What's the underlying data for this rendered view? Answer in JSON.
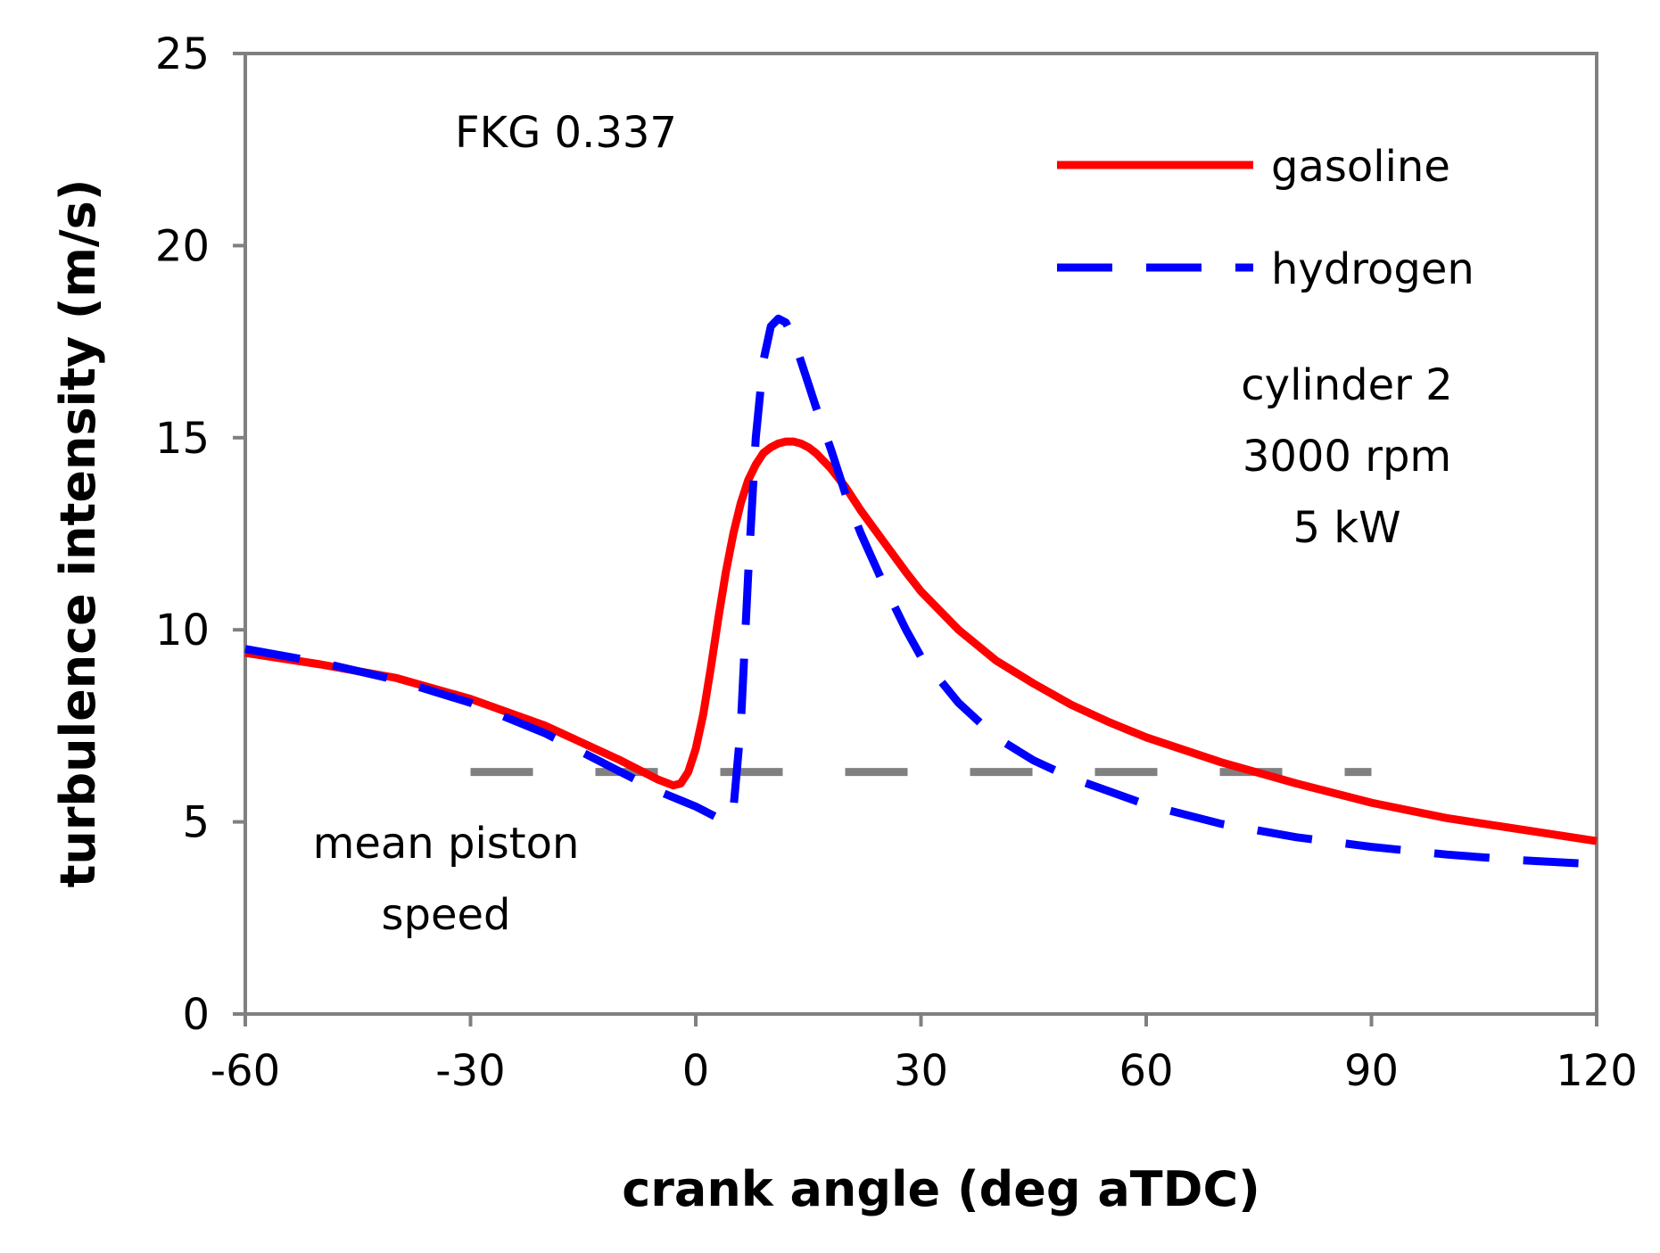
{
  "chart_data": {
    "type": "line",
    "title": "",
    "xlabel": "crank angle (deg aTDC)",
    "ylabel": "turbulence intensity (m/s)",
    "xlim": [
      -60,
      120
    ],
    "ylim": [
      0,
      25
    ],
    "xticks": [
      -60,
      -30,
      0,
      30,
      60,
      90,
      120
    ],
    "yticks": [
      0,
      5,
      10,
      15,
      20,
      25
    ],
    "xtick_labels": [
      "-60",
      "-30",
      "0",
      "30",
      "60",
      "90",
      "120"
    ],
    "ytick_labels": [
      "0",
      "5",
      "10",
      "15",
      "20",
      "25"
    ],
    "grid": false,
    "legend_position": "top-right",
    "series": [
      {
        "name": "gasoline",
        "color": "#ff0000",
        "style": "solid",
        "x": [
          -60,
          -50,
          -40,
          -30,
          -20,
          -10,
          -5,
          -3,
          -2,
          -1,
          0,
          1,
          2,
          3,
          4,
          5,
          6,
          7,
          8,
          9,
          10,
          11,
          12,
          13,
          14,
          15,
          16,
          18,
          20,
          22,
          25,
          28,
          30,
          35,
          40,
          45,
          50,
          55,
          60,
          70,
          80,
          90,
          100,
          110,
          120
        ],
        "y": [
          9.4,
          9.1,
          8.75,
          8.2,
          7.5,
          6.6,
          6.1,
          5.95,
          6.0,
          6.3,
          6.9,
          7.8,
          9.0,
          10.3,
          11.5,
          12.5,
          13.3,
          13.9,
          14.3,
          14.6,
          14.75,
          14.85,
          14.9,
          14.9,
          14.85,
          14.75,
          14.6,
          14.2,
          13.7,
          13.1,
          12.3,
          11.5,
          11.0,
          10.0,
          9.2,
          8.6,
          8.05,
          7.6,
          7.2,
          6.55,
          6.0,
          5.5,
          5.1,
          4.8,
          4.5
        ]
      },
      {
        "name": "hydrogen",
        "color": "#0000ff",
        "style": "dashed",
        "x": [
          -60,
          -50,
          -40,
          -30,
          -20,
          -10,
          -5,
          0,
          2,
          4,
          5,
          6,
          7,
          8,
          9,
          10,
          11,
          12,
          13,
          14,
          15,
          16,
          18,
          20,
          22,
          25,
          28,
          30,
          35,
          40,
          45,
          50,
          55,
          60,
          70,
          80,
          90,
          100,
          110,
          120
        ],
        "y": [
          9.5,
          9.15,
          8.7,
          8.1,
          7.3,
          6.3,
          5.8,
          5.4,
          5.2,
          5.0,
          5.3,
          7.5,
          11.5,
          15.0,
          17.0,
          17.9,
          18.1,
          18.0,
          17.6,
          17.0,
          16.4,
          15.8,
          14.7,
          13.5,
          12.5,
          11.2,
          10.0,
          9.3,
          8.1,
          7.2,
          6.6,
          6.15,
          5.8,
          5.45,
          4.95,
          4.6,
          4.35,
          4.15,
          4.0,
          3.9
        ]
      },
      {
        "name": "mean piston speed",
        "color": "#808080",
        "style": "dashed",
        "x": [
          -30,
          90
        ],
        "y": [
          6.3,
          6.3
        ]
      }
    ],
    "annotations": {
      "fkg": "FKG 0.337",
      "cylinder": "cylinder 2",
      "rpm": "3000 rpm",
      "power": "5 kW",
      "mps_line1": "mean piston",
      "mps_line2": "speed"
    },
    "legend": [
      {
        "label": "gasoline",
        "color": "#ff0000",
        "style": "solid"
      },
      {
        "label": "hydrogen",
        "color": "#0000ff",
        "style": "dashed"
      }
    ],
    "colors": {
      "axis": "#808080",
      "gasoline": "#ff0000",
      "hydrogen": "#0000ff",
      "piston": "#808080"
    }
  }
}
